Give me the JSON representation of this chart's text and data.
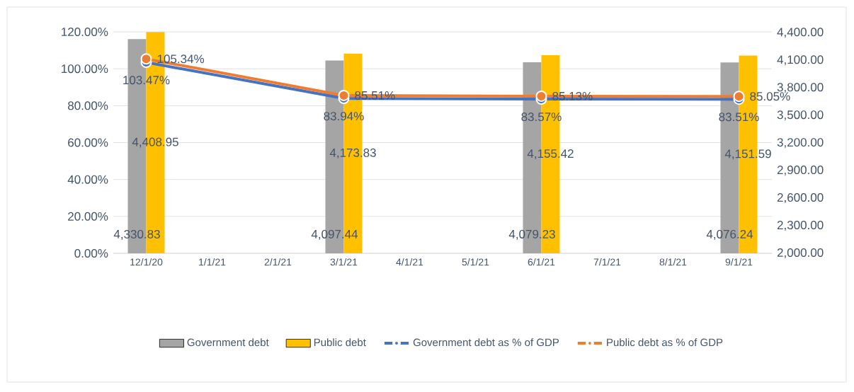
{
  "chart_data": {
    "type": "bar",
    "categories": [
      "12/1/20",
      "1/1/21",
      "2/1/21",
      "3/1/21",
      "4/1/21",
      "5/1/21",
      "6/1/21",
      "7/1/21",
      "8/1/21",
      "9/1/21"
    ],
    "series": [
      {
        "name": "Government debt",
        "axis": "y2",
        "color": "#a5a5a5",
        "values": [
          4330.83,
          null,
          null,
          4097.44,
          null,
          null,
          4079.23,
          null,
          null,
          4076.24
        ],
        "value_labels": [
          "4,330.83",
          null,
          null,
          "4,097.44",
          null,
          null,
          "4,079.23",
          null,
          null,
          "4,076.24"
        ]
      },
      {
        "name": "Public debt",
        "axis": "y2",
        "color": "#ffc000",
        "values": [
          4408.95,
          null,
          null,
          4173.83,
          null,
          null,
          4155.42,
          null,
          null,
          4151.59
        ],
        "value_labels": [
          "4,408.95",
          null,
          null,
          "4,173.83",
          null,
          null,
          "4,155.42",
          null,
          null,
          "4,151.59"
        ]
      },
      {
        "name": "Government debt as % of GDP",
        "type": "line",
        "axis": "y",
        "color": "#4472c4",
        "values": [
          103.47,
          null,
          null,
          83.94,
          null,
          null,
          83.57,
          null,
          null,
          83.51
        ],
        "value_labels": [
          "103.47%",
          null,
          null,
          "83.94%",
          null,
          null,
          "83.57%",
          null,
          null,
          "83.51%"
        ]
      },
      {
        "name": "Public debt as % of GDP",
        "type": "line",
        "axis": "y",
        "color": "#ed7d31",
        "values": [
          105.34,
          null,
          null,
          85.51,
          null,
          null,
          85.13,
          null,
          null,
          85.05
        ],
        "value_labels": [
          "105.34%",
          null,
          null,
          "85.51%",
          null,
          null,
          "85.13%",
          null,
          null,
          "85.05%"
        ]
      }
    ],
    "ylim": [
      0,
      120
    ],
    "yticks": [
      {
        "value": 0,
        "label": "0.00%"
      },
      {
        "value": 20,
        "label": "20.00%"
      },
      {
        "value": 40,
        "label": "40.00%"
      },
      {
        "value": 60,
        "label": "60.00%"
      },
      {
        "value": 80,
        "label": "80.00%"
      },
      {
        "value": 100,
        "label": "100.00%"
      },
      {
        "value": 120,
        "label": "120.00%"
      }
    ],
    "y2lim": [
      2000,
      4410
    ],
    "y2ticks": [
      {
        "value": 2000,
        "label": "2,000.00"
      },
      {
        "value": 2300,
        "label": "2,300.00"
      },
      {
        "value": 2600,
        "label": "2,600.00"
      },
      {
        "value": 2900,
        "label": "2,900.00"
      },
      {
        "value": 3200,
        "label": "3,200.00"
      },
      {
        "value": 3500,
        "label": "3,500.00"
      },
      {
        "value": 3800,
        "label": "3,800.00"
      },
      {
        "value": 4100,
        "label": "4,100.00"
      },
      {
        "value": 4400,
        "label": "4,400.00"
      }
    ],
    "grid": "y",
    "legend": "bottom",
    "marker": "circle",
    "line_style": "solid"
  }
}
